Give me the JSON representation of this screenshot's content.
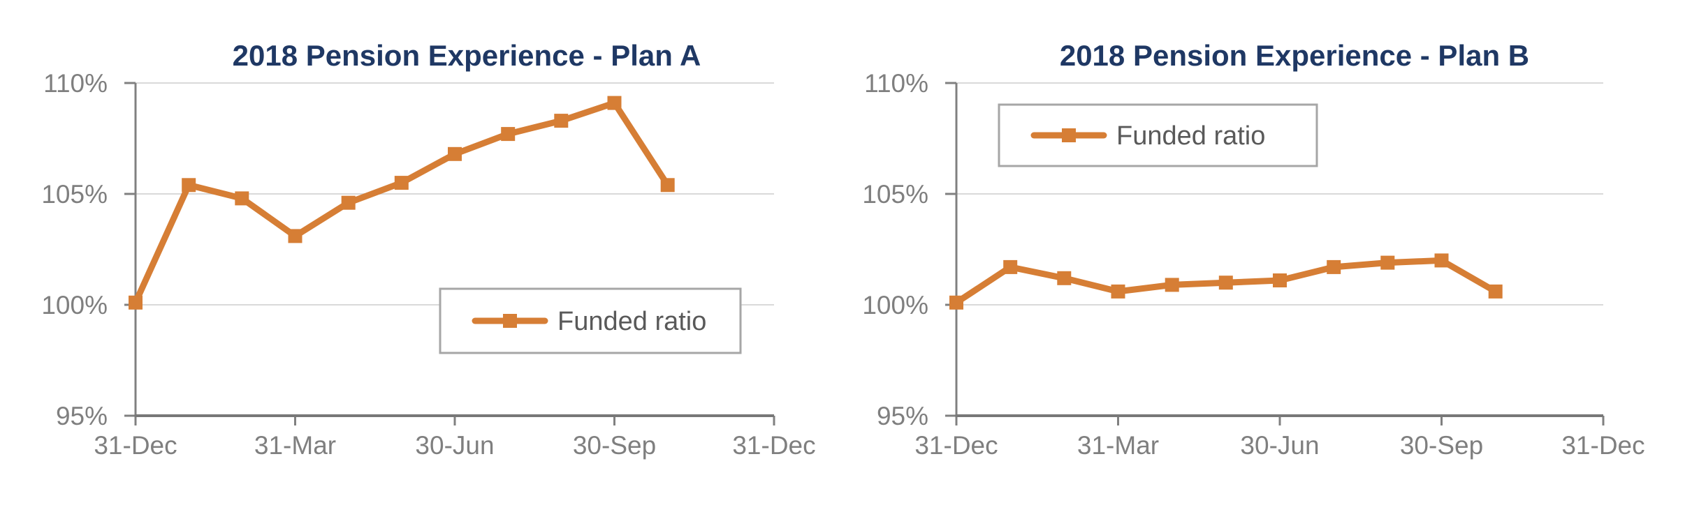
{
  "styles": {
    "background": "#FFFFFF",
    "title_color": "#1F3864",
    "axis_label_color": "#7F7F7F",
    "legend_text_color": "#595959",
    "gridline_color": "#D9D9D9",
    "axis_line_color": "#808080",
    "x_axis_line_color": "#787878",
    "legend_border_color": "#A6A6A6",
    "legend_fill": "#FFFFFF",
    "series_color": "#D67E35"
  },
  "chart_data": [
    {
      "type": "line",
      "title": "2018 Pension Experience - Plan A",
      "x_tick_labels": [
        "31-Dec",
        "31-Mar",
        "30-Jun",
        "30-Sep",
        "31-Dec"
      ],
      "x_tick_months": [
        0,
        3,
        6,
        9,
        12
      ],
      "xlim_months": [
        0,
        12
      ],
      "y_ticks": [
        110,
        105,
        100,
        95
      ],
      "y_tick_labels": [
        "110%",
        "105%",
        "100%",
        "95%"
      ],
      "ylim": [
        95,
        110
      ],
      "grid": true,
      "legend_position": "inside-bottom-right",
      "series": [
        {
          "name": "Funded ratio",
          "marker": "square",
          "color": "#D67E35",
          "x_months": [
            0,
            1,
            2,
            3,
            4,
            5,
            6,
            7,
            8,
            9,
            10
          ],
          "values": [
            100.1,
            105.4,
            104.8,
            103.1,
            104.6,
            105.5,
            106.8,
            107.7,
            108.3,
            109.1,
            105.4
          ]
        }
      ]
    },
    {
      "type": "line",
      "title": "2018 Pension Experience - Plan B",
      "x_tick_labels": [
        "31-Dec",
        "31-Mar",
        "30-Jun",
        "30-Sep",
        "31-Dec"
      ],
      "x_tick_months": [
        0,
        3,
        6,
        9,
        12
      ],
      "xlim_months": [
        0,
        12
      ],
      "y_ticks": [
        110,
        105,
        100,
        95
      ],
      "y_tick_labels": [
        "110%",
        "105%",
        "100%",
        "95%"
      ],
      "ylim": [
        95,
        110
      ],
      "grid": true,
      "legend_position": "inside-top-left",
      "series": [
        {
          "name": "Funded ratio",
          "marker": "square",
          "color": "#D67E35",
          "x_months": [
            0,
            1,
            2,
            3,
            4,
            5,
            6,
            7,
            8,
            9,
            10
          ],
          "values": [
            100.1,
            101.7,
            101.2,
            100.6,
            100.9,
            101.0,
            101.1,
            101.7,
            101.9,
            102.0,
            100.6
          ]
        }
      ]
    }
  ]
}
